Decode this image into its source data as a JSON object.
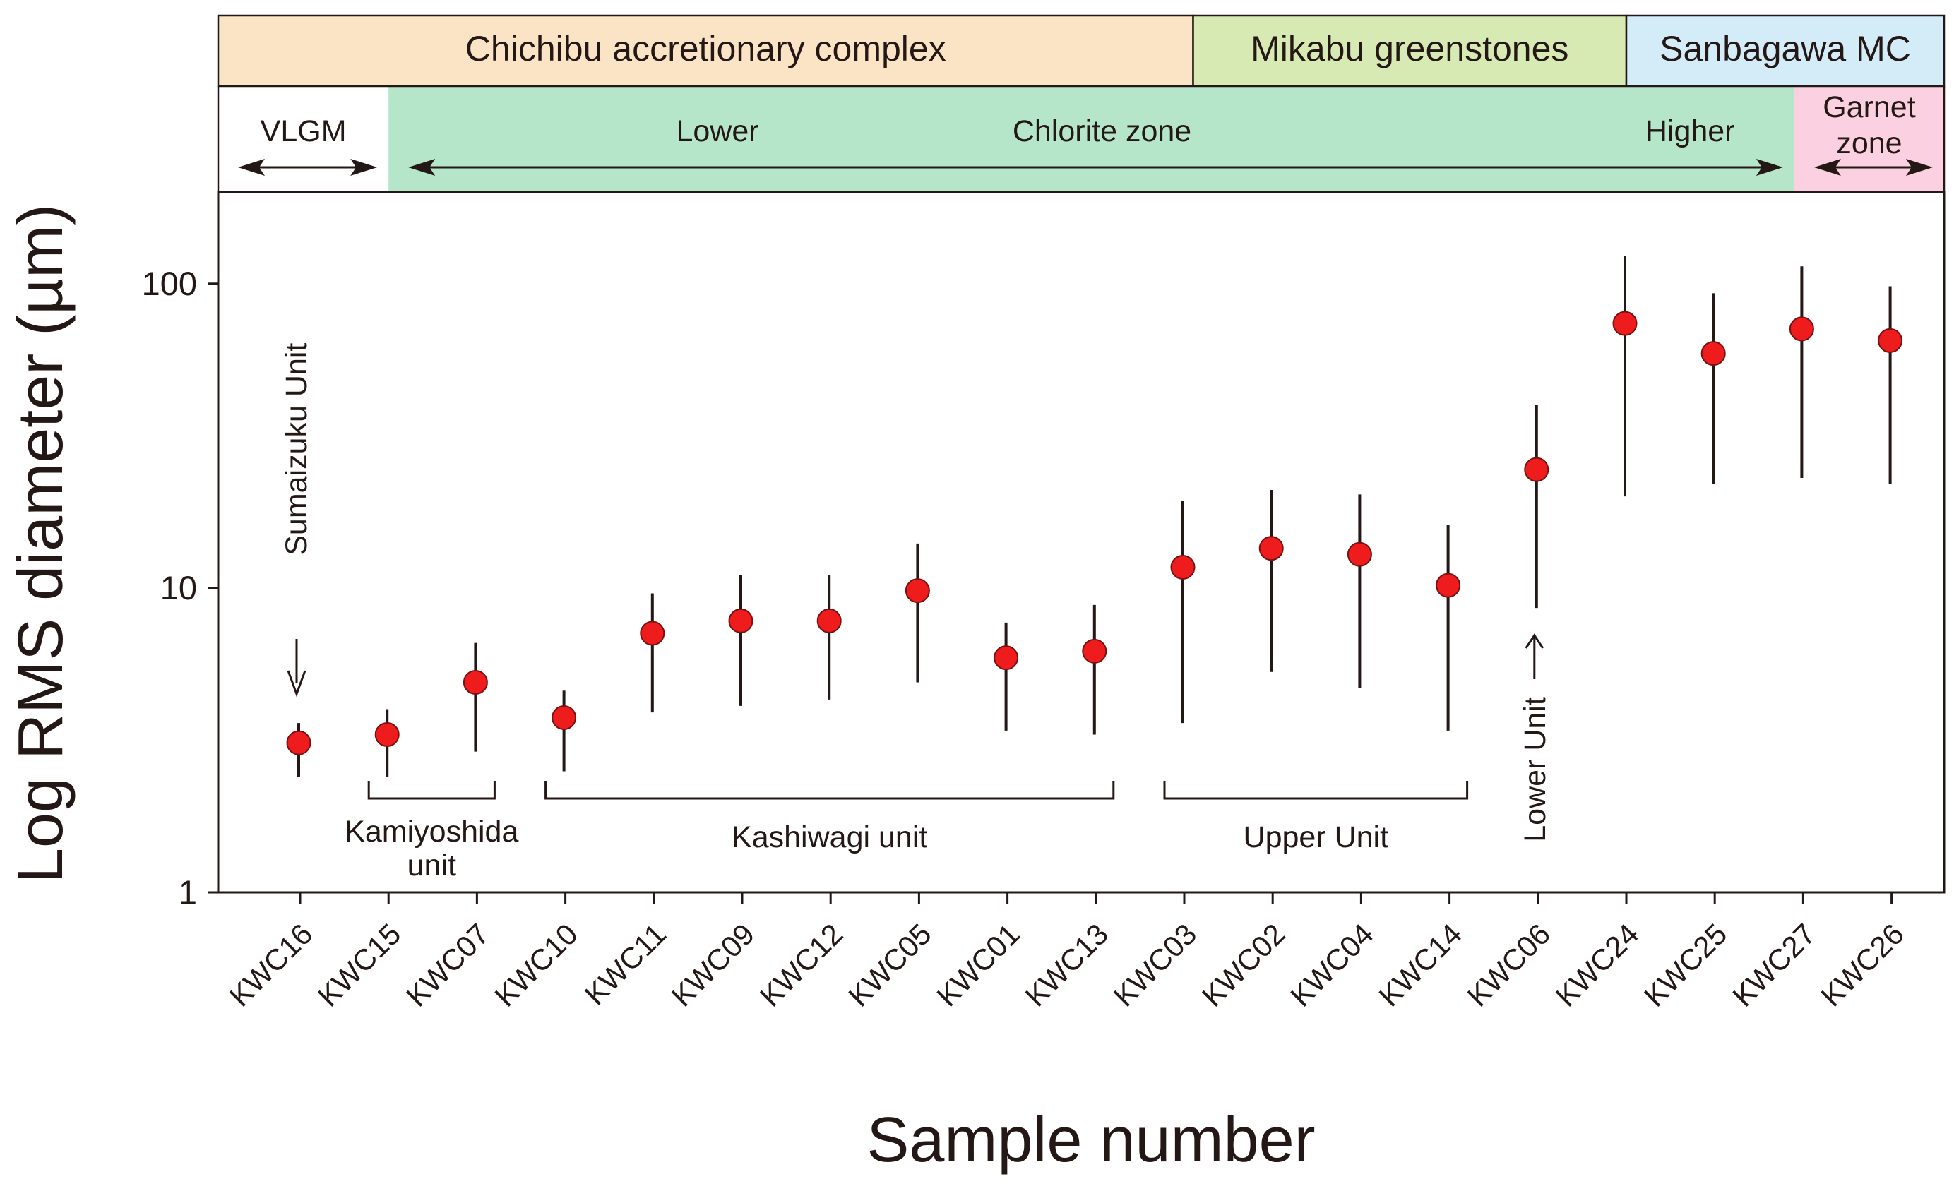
{
  "chart_data": {
    "type": "scatter",
    "title": "",
    "xlabel": "Sample number",
    "ylabel": "Log RMS diameter (µm)",
    "yscale": "log",
    "ylim": [
      1,
      200
    ],
    "yticks": [
      {
        "value": 1,
        "label": "1"
      },
      {
        "value": 10,
        "label": "10"
      },
      {
        "value": 100,
        "label": "100"
      }
    ],
    "categories": [
      "KWC16",
      "KWC15",
      "KWC07",
      "KWC10",
      "KWC11",
      "KWC09",
      "KWC12",
      "KWC05",
      "KWC01",
      "KWC13",
      "KWC03",
      "KWC02",
      "KWC04",
      "KWC14",
      "KWC06",
      "KWC24",
      "KWC25",
      "KWC27",
      "KWC26"
    ],
    "series": [
      {
        "name": "RMS diameter",
        "color": "#ee1c1c",
        "values": [
          3.1,
          3.3,
          4.9,
          3.75,
          7.1,
          7.8,
          7.8,
          9.8,
          5.9,
          6.2,
          11.7,
          13.5,
          12.9,
          10.2,
          24.5,
          74,
          59,
          71,
          65
        ],
        "err_low": [
          2.4,
          2.4,
          2.9,
          2.5,
          3.9,
          4.1,
          4.3,
          4.9,
          3.4,
          3.3,
          3.6,
          5.3,
          4.7,
          3.4,
          8.6,
          20,
          22,
          23,
          22
        ],
        "err_high": [
          3.6,
          4.0,
          6.6,
          4.6,
          9.6,
          11.0,
          11.0,
          14.0,
          7.7,
          8.8,
          19.3,
          21.0,
          20.3,
          16.1,
          40,
          123,
          93,
          114,
          98
        ]
      }
    ],
    "header_bands": [
      {
        "label": "Chichibu accretionary complex",
        "color": "#fbe3c5",
        "from": 0,
        "to": 10.6
      },
      {
        "label": "Mikabu greenstones",
        "color": "#d8eab4",
        "from": 10.6,
        "to": 15.5
      },
      {
        "label": "Sanbagawa MC",
        "color": "#d4ecf8",
        "from": 15.5,
        "to": 19
      }
    ],
    "zones": [
      {
        "label": "VLGM",
        "color": "#ffffff",
        "from": 0,
        "to": 1.5,
        "arrow": true
      },
      {
        "label": "Chlorite zone",
        "color": "#b6e6ca",
        "from": 1.5,
        "to": 17.4,
        "arrow": true,
        "sublabels": [
          {
            "label": "Lower",
            "at": 5.0
          },
          {
            "label": "Higher",
            "at": 16.0
          }
        ]
      },
      {
        "label": "Garnet zone",
        "color": "#fbd0e0",
        "from": 17.4,
        "to": 19,
        "arrow": true
      }
    ],
    "groups": [
      {
        "label": "Kamiyoshida unit",
        "from": 1,
        "to": 2
      },
      {
        "label": "Kashiwagi unit",
        "from": 3,
        "to": 9
      },
      {
        "label": "Upper Unit",
        "from": 10,
        "to": 13
      }
    ],
    "annotations": [
      {
        "label": "Sumaizuku Unit",
        "target": 0
      },
      {
        "label": "Lower Unit",
        "target": 14
      }
    ]
  }
}
